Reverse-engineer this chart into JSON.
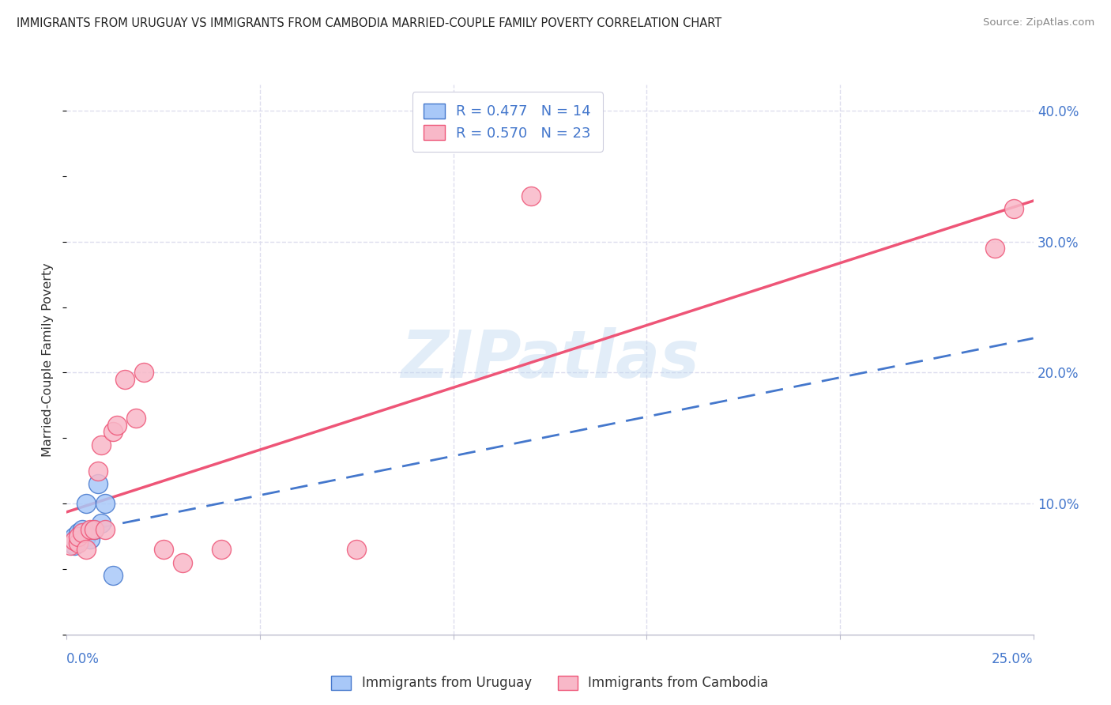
{
  "title": "IMMIGRANTS FROM URUGUAY VS IMMIGRANTS FROM CAMBODIA MARRIED-COUPLE FAMILY POVERTY CORRELATION CHART",
  "source": "Source: ZipAtlas.com",
  "ylabel": "Married-Couple Family Poverty",
  "ytick_vals": [
    0.0,
    0.1,
    0.2,
    0.3,
    0.4
  ],
  "ytick_labels": [
    "0.0%",
    "10.0%",
    "20.0%",
    "30.0%",
    "40.0%"
  ],
  "xlim": [
    0.0,
    0.25
  ],
  "ylim": [
    0.0,
    0.42
  ],
  "uruguay_color": "#a8c8f8",
  "cambodia_color": "#f8b8c8",
  "uruguay_line_color": "#4477cc",
  "cambodia_line_color": "#ee5577",
  "watermark_text": "ZIPatlas",
  "legend_R_uruguay": "R = 0.477",
  "legend_N_uruguay": "N = 14",
  "legend_R_cambodia": "R = 0.570",
  "legend_N_cambodia": "N = 23",
  "uruguay_x": [
    0.001,
    0.002,
    0.002,
    0.003,
    0.003,
    0.004,
    0.005,
    0.005,
    0.006,
    0.007,
    0.008,
    0.009,
    0.01,
    0.012
  ],
  "uruguay_y": [
    0.07,
    0.068,
    0.075,
    0.072,
    0.078,
    0.08,
    0.1,
    0.075,
    0.073,
    0.08,
    0.115,
    0.085,
    0.1,
    0.045
  ],
  "cambodia_x": [
    0.001,
    0.002,
    0.003,
    0.003,
    0.004,
    0.005,
    0.006,
    0.007,
    0.008,
    0.009,
    0.01,
    0.012,
    0.013,
    0.015,
    0.018,
    0.02,
    0.025,
    0.03,
    0.04,
    0.075,
    0.12,
    0.24,
    0.245
  ],
  "cambodia_y": [
    0.068,
    0.072,
    0.07,
    0.075,
    0.078,
    0.065,
    0.08,
    0.08,
    0.125,
    0.145,
    0.08,
    0.155,
    0.16,
    0.195,
    0.165,
    0.2,
    0.065,
    0.055,
    0.065,
    0.065,
    0.335,
    0.295,
    0.325
  ],
  "background_color": "#ffffff",
  "grid_color": "#ddddee",
  "legend_text_color": "#4477cc",
  "bottom_legend_color": "#333333",
  "title_color": "#222222",
  "source_color": "#888888",
  "axis_label_color": "#4477cc",
  "ylabel_color": "#333333"
}
